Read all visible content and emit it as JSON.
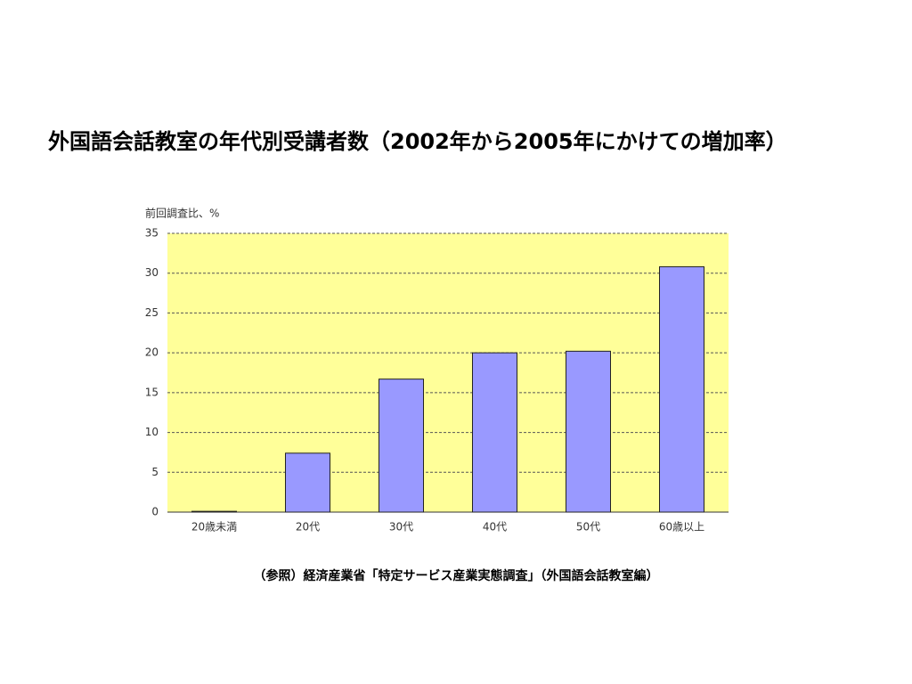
{
  "chart_data": {
    "type": "bar",
    "title": "外国語会話教室の年代別受講者数（2002年から2005年にかけての増加率）",
    "y_label": "前回調査比、%",
    "caption": "（参照）経済産業省「特定サービス産業実態調査」（外国語会話教室編）",
    "categories": [
      "20歳未満",
      "20代",
      "30代",
      "40代",
      "50代",
      "60歳以上"
    ],
    "values": [
      0.1,
      7.4,
      16.7,
      20.0,
      20.2,
      30.8
    ],
    "color": "#9999ff",
    "plot_background": "#ffff99",
    "ylim": [
      0,
      35
    ],
    "yticks": [
      0,
      5,
      10,
      15,
      20,
      25,
      30,
      35
    ],
    "grid": true
  }
}
